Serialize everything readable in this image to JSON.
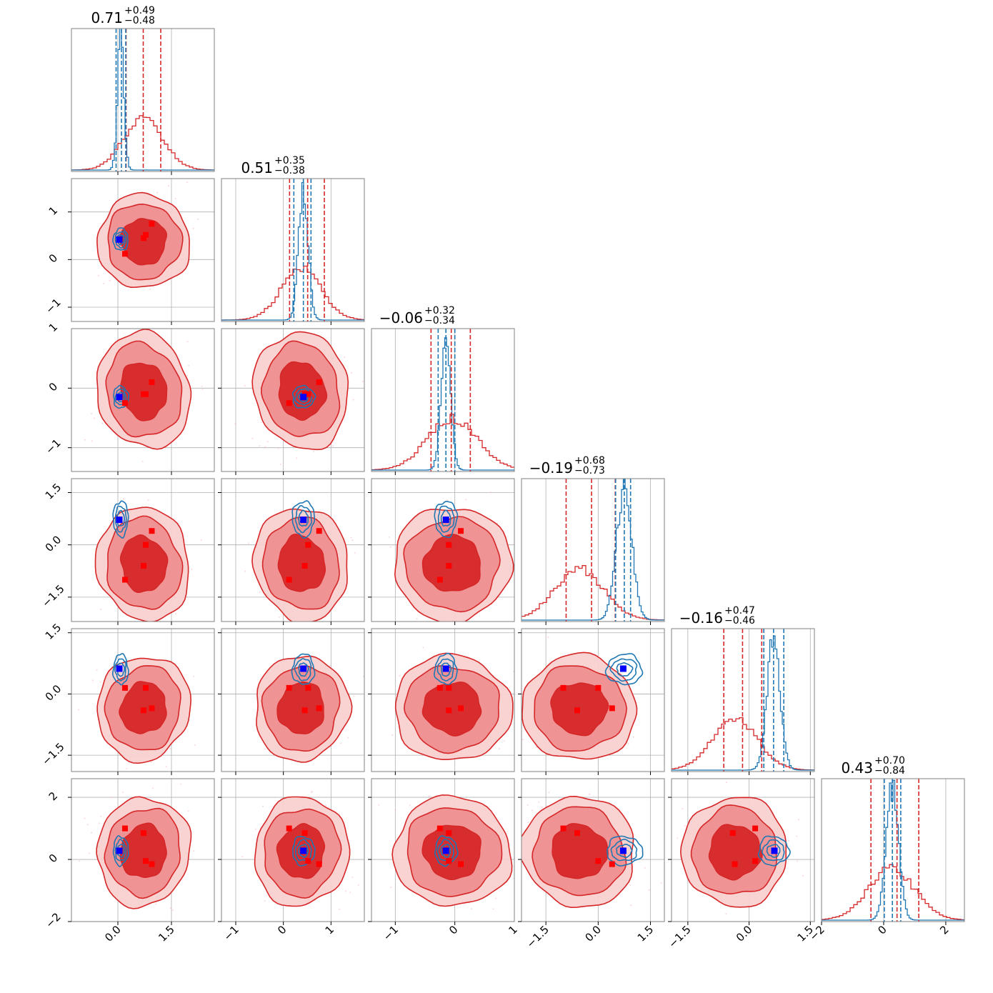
{
  "colors": {
    "posterior_a": "#d62728",
    "posterior_b": "#1f77b4",
    "truth_a_markers": "#ff0000",
    "truth_b_marker": "#0000ff",
    "grid": "#b0b0b0",
    "axes": "#808080"
  },
  "chart_data": {
    "type": "corner",
    "n_params": 6,
    "grid": true,
    "titles": [
      {
        "median": "0.71",
        "plus": "+0.49",
        "minus": "−0.48"
      },
      {
        "median": "0.51",
        "plus": "+0.35",
        "minus": "−0.38"
      },
      {
        "median": "−0.06",
        "plus": "+0.32",
        "minus": "−0.34"
      },
      {
        "median": "−0.19",
        "plus": "+0.68",
        "minus": "−0.73"
      },
      {
        "median": "−0.16",
        "plus": "+0.47",
        "minus": "−0.46"
      },
      {
        "median": "0.43",
        "plus": "+0.70",
        "minus": "−0.84"
      }
    ],
    "ranges": [
      [
        -1.3,
        2.7
      ],
      [
        -1.3,
        1.7
      ],
      [
        -1.4,
        1.0
      ],
      [
        -2.2,
        1.9
      ],
      [
        -1.9,
        1.6
      ],
      [
        -2.0,
        2.6
      ]
    ],
    "ticks": [
      {
        "values": [
          0,
          1.5
        ],
        "labels": [
          "0.0",
          "1.5"
        ]
      },
      {
        "values": [
          -1,
          0,
          1
        ],
        "labels": [
          "−1",
          "0",
          "1"
        ]
      },
      {
        "values": [
          -1,
          0
        ],
        "labels": [
          "−1",
          "0"
        ]
      },
      {
        "values": [
          -1.5,
          0,
          1.5
        ],
        "labels": [
          "−1.5",
          "0.0",
          "1.5"
        ]
      },
      {
        "values": [
          -1.5,
          0,
          1.5
        ],
        "labels": [
          "−1.5",
          "0.0",
          "1.5"
        ]
      },
      {
        "values": [
          -2,
          0,
          2
        ],
        "labels": [
          "−2",
          "0",
          "2"
        ]
      }
    ],
    "bottom_tick_labels": [
      {
        "values": [
          0,
          1.5
        ],
        "labels": [
          "0.0",
          "1.5"
        ]
      },
      {
        "values": [
          -1,
          0,
          1
        ],
        "labels": [
          "−1",
          "0",
          "1"
        ]
      },
      {
        "values": [
          -1,
          0,
          1
        ],
        "labels": [
          "−1",
          "0",
          "1"
        ]
      },
      {
        "values": [
          -1.5,
          0,
          1.5
        ],
        "labels": [
          "−1.5",
          "0.0",
          "1.5"
        ]
      },
      {
        "values": [
          -1.5,
          0,
          1.5
        ],
        "labels": [
          "−1.5",
          "0.0",
          "1.5"
        ]
      },
      {
        "values": [
          -2,
          0,
          2
        ],
        "labels": [
          "−2",
          "0",
          "2"
        ]
      }
    ],
    "left_tick_labels": [
      null,
      {
        "values": [
          -1,
          0,
          1
        ],
        "labels": [
          "−1",
          "0",
          "1"
        ]
      },
      {
        "values": [
          -1,
          0,
          1
        ],
        "labels": [
          "−1",
          "0",
          "1"
        ]
      },
      {
        "values": [
          -1.5,
          0,
          1.5
        ],
        "labels": [
          "−1.5",
          "0.0",
          "1.5"
        ]
      },
      {
        "values": [
          -1.5,
          0,
          1.5
        ],
        "labels": [
          "−1.5",
          "0.0",
          "1.5"
        ]
      },
      {
        "values": [
          -2,
          0,
          2
        ],
        "labels": [
          "−2",
          "0",
          "2"
        ]
      }
    ],
    "posterior_a": {
      "mean": [
        0.72,
        0.38,
        -0.04,
        -0.55,
        -0.35,
        0.25
      ],
      "sd": [
        0.55,
        0.42,
        0.42,
        0.7,
        0.55,
        0.75
      ],
      "corr": [
        [
          1,
          0.35,
          0.25,
          0.2,
          -0.3,
          -0.2
        ],
        [
          0.35,
          1,
          0.2,
          0.2,
          -0.2,
          -0.2
        ],
        [
          0.25,
          0.2,
          1,
          0.2,
          -0.1,
          -0.15
        ],
        [
          0.2,
          0.2,
          0.2,
          1,
          -0.1,
          -0.5
        ],
        [
          -0.3,
          -0.2,
          -0.1,
          -0.1,
          1,
          0.0
        ],
        [
          -0.2,
          -0.2,
          -0.15,
          -0.5,
          0.0,
          1
        ]
      ],
      "quantiles": [
        [
          0.23,
          0.71,
          1.2
        ],
        [
          0.13,
          0.51,
          0.86
        ],
        [
          -0.4,
          -0.06,
          0.26
        ],
        [
          -0.92,
          -0.19,
          0.49
        ],
        [
          -0.62,
          -0.16,
          0.31
        ],
        [
          -0.41,
          0.43,
          1.13
        ]
      ]
    },
    "posterior_b": {
      "mean": [
        0.08,
        0.42,
        -0.15,
        0.75,
        0.6,
        0.28
      ],
      "sd": [
        0.09,
        0.1,
        0.08,
        0.22,
        0.16,
        0.2
      ],
      "quantiles": [
        [
          -0.05,
          0.1,
          0.22
        ],
        [
          0.22,
          0.42,
          0.58
        ],
        [
          -0.28,
          -0.15,
          0.0
        ],
        [
          0.5,
          0.75,
          0.93
        ],
        [
          0.36,
          0.6,
          0.85
        ],
        [
          0.02,
          0.28,
          0.55
        ]
      ]
    },
    "truth_points_a": [
      [
        0.2,
        0.12,
        -0.25,
        -1.0,
        0.15,
        1.0
      ],
      [
        0.72,
        0.45,
        -0.1,
        -0.6,
        -0.4,
        0.85
      ],
      [
        0.78,
        0.52,
        -0.1,
        0.0,
        0.15,
        -0.05
      ],
      [
        0.95,
        0.75,
        0.1,
        0.4,
        -0.35,
        -0.15
      ]
    ],
    "truth_point_b": [
      0.04,
      0.42,
      -0.15,
      0.72,
      0.62,
      0.28
    ]
  }
}
